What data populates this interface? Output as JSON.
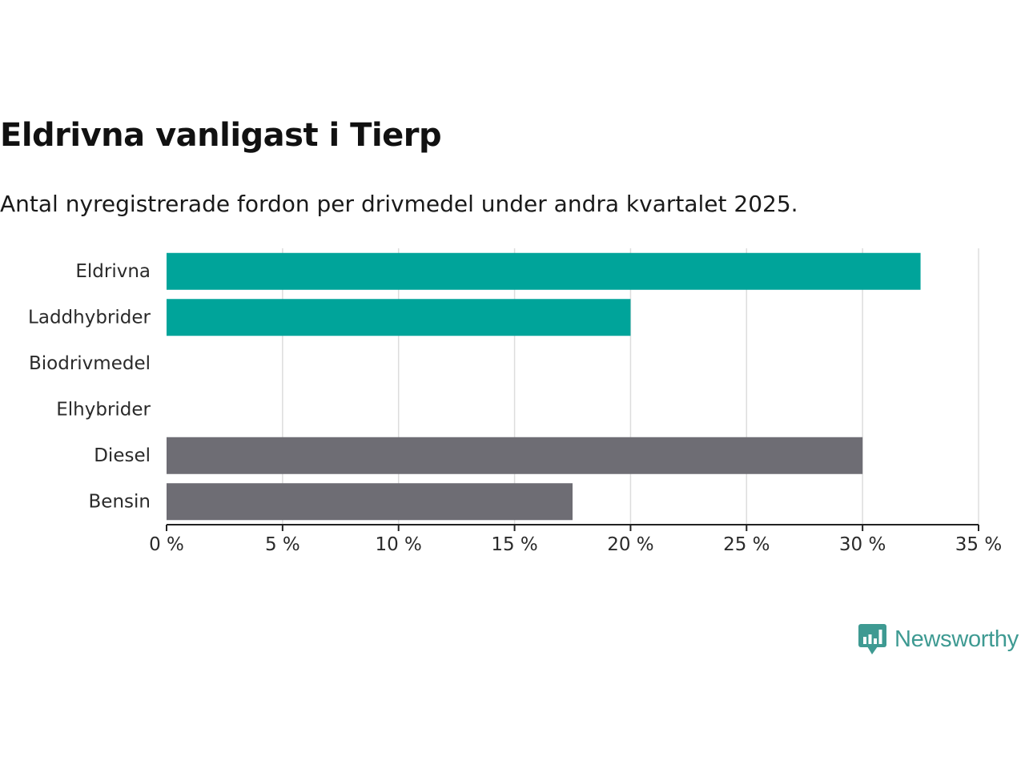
{
  "title": "Eldrivna vanligast i Tierp",
  "subtitle": "Antal nyregistrerade fordon per drivmedel under andra kvartalet 2025.",
  "brand": {
    "name": "Newsworthy",
    "color": "#3e9a92",
    "icon": "bar-chart-bubble-icon"
  },
  "colors": {
    "highlight": "#00a49a",
    "neutral": "#6e6d74",
    "grid": "#dddddd",
    "axis": "#222222"
  },
  "chart_data": {
    "type": "bar",
    "orientation": "horizontal",
    "categories": [
      "Eldrivna",
      "Laddhybrider",
      "Biodrivmedel",
      "Elhybrider",
      "Diesel",
      "Bensin"
    ],
    "values": [
      32.5,
      20,
      0,
      0,
      30,
      17.5
    ],
    "bar_colors": [
      "#00a49a",
      "#00a49a",
      "#00a49a",
      "#00a49a",
      "#6e6d74",
      "#6e6d74"
    ],
    "xlim": [
      0,
      35
    ],
    "xticks": [
      0,
      5,
      10,
      15,
      20,
      25,
      30,
      35
    ],
    "tick_labels": [
      "0 %",
      "5 %",
      "10 %",
      "15 %",
      "20 %",
      "25 %",
      "30 %",
      "35 %"
    ],
    "unit": "%",
    "grid": "vertical",
    "legend": "none"
  }
}
